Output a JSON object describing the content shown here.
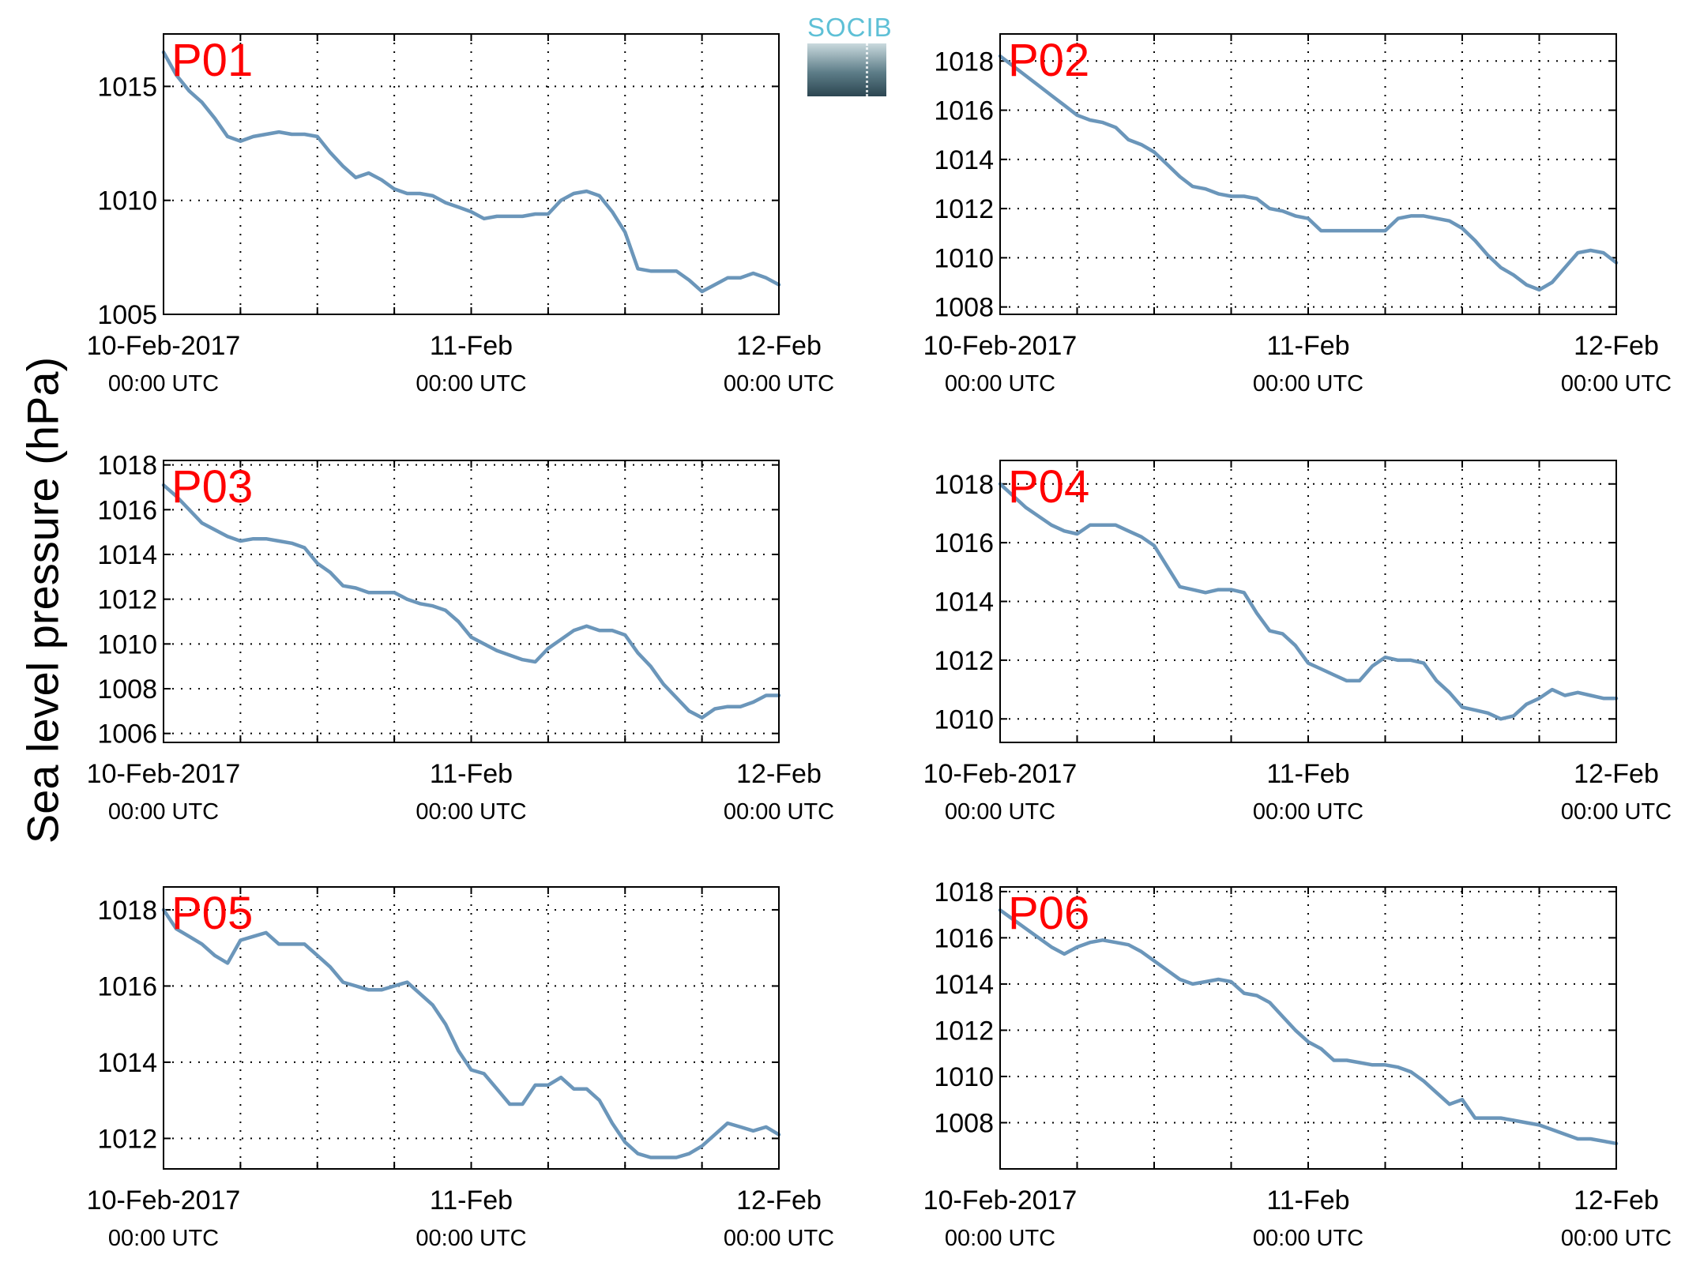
{
  "ylabel": "Sea level pressure (hPa)",
  "logo": {
    "text": "SOCIB"
  },
  "x_tick_labels": [
    {
      "line1": "10-Feb-2017",
      "line2": "00:00 UTC"
    },
    {
      "line1": "11-Feb",
      "line2": "00:00 UTC"
    },
    {
      "line1": "12-Feb",
      "line2": "00:00 UTC"
    }
  ],
  "colors": {
    "line": "#6b96ba",
    "panel_label": "#ff0000",
    "grid": "#000000"
  },
  "chart_data": [
    {
      "type": "line",
      "title": "P01",
      "xlim_hours": [
        0,
        48
      ],
      "ylim": [
        1005,
        1017.3
      ],
      "yticks": [
        1005,
        1010,
        1015
      ],
      "x_hours": [
        0,
        1,
        2,
        3,
        4,
        5,
        6,
        7,
        8,
        9,
        10,
        11,
        12,
        13,
        14,
        15,
        16,
        17,
        18,
        19,
        20,
        21,
        22,
        23,
        24,
        25,
        26,
        27,
        28,
        29,
        30,
        31,
        32,
        33,
        34,
        35,
        36,
        37,
        38,
        39,
        40,
        41,
        42,
        43,
        44,
        45,
        46,
        47,
        48
      ],
      "y": [
        1016.5,
        1015.5,
        1014.8,
        1014.3,
        1013.6,
        1012.8,
        1012.6,
        1012.8,
        1012.9,
        1013.0,
        1012.9,
        1012.9,
        1012.8,
        1012.1,
        1011.5,
        1011.0,
        1011.2,
        1010.9,
        1010.5,
        1010.3,
        1010.3,
        1010.2,
        1009.9,
        1009.7,
        1009.5,
        1009.2,
        1009.3,
        1009.3,
        1009.3,
        1009.4,
        1009.4,
        1010.0,
        1010.3,
        1010.4,
        1010.2,
        1009.5,
        1008.6,
        1007.0,
        1006.9,
        1006.9,
        1006.9,
        1006.5,
        1006.0,
        1006.3,
        1006.6,
        1006.6,
        1006.8,
        1006.6,
        1006.3
      ]
    },
    {
      "type": "line",
      "title": "P02",
      "xlim_hours": [
        0,
        48
      ],
      "ylim": [
        1007.7,
        1019.1
      ],
      "yticks": [
        1008,
        1010,
        1012,
        1014,
        1016,
        1018
      ],
      "x_hours": [
        0,
        1,
        2,
        3,
        4,
        5,
        6,
        7,
        8,
        9,
        10,
        11,
        12,
        13,
        14,
        15,
        16,
        17,
        18,
        19,
        20,
        21,
        22,
        23,
        24,
        25,
        26,
        27,
        28,
        29,
        30,
        31,
        32,
        33,
        34,
        35,
        36,
        37,
        38,
        39,
        40,
        41,
        42,
        43,
        44,
        45,
        46,
        47,
        48
      ],
      "y": [
        1018.2,
        1017.8,
        1017.4,
        1017.0,
        1016.6,
        1016.2,
        1015.8,
        1015.6,
        1015.5,
        1015.3,
        1014.8,
        1014.6,
        1014.3,
        1013.8,
        1013.3,
        1012.9,
        1012.8,
        1012.6,
        1012.5,
        1012.5,
        1012.4,
        1012.0,
        1011.9,
        1011.7,
        1011.6,
        1011.1,
        1011.1,
        1011.1,
        1011.1,
        1011.1,
        1011.1,
        1011.6,
        1011.7,
        1011.7,
        1011.6,
        1011.5,
        1011.2,
        1010.7,
        1010.1,
        1009.6,
        1009.3,
        1008.9,
        1008.7,
        1009.0,
        1009.6,
        1010.2,
        1010.3,
        1010.2,
        1009.8
      ]
    },
    {
      "type": "line",
      "title": "P03",
      "xlim_hours": [
        0,
        48
      ],
      "ylim": [
        1005.6,
        1018.2
      ],
      "yticks": [
        1006,
        1008,
        1010,
        1012,
        1014,
        1016,
        1018
      ],
      "x_hours": [
        0,
        1,
        2,
        3,
        4,
        5,
        6,
        7,
        8,
        9,
        10,
        11,
        12,
        13,
        14,
        15,
        16,
        17,
        18,
        19,
        20,
        21,
        22,
        23,
        24,
        25,
        26,
        27,
        28,
        29,
        30,
        31,
        32,
        33,
        34,
        35,
        36,
        37,
        38,
        39,
        40,
        41,
        42,
        43,
        44,
        45,
        46,
        47,
        48
      ],
      "y": [
        1017.1,
        1016.6,
        1016.0,
        1015.4,
        1015.1,
        1014.8,
        1014.6,
        1014.7,
        1014.7,
        1014.6,
        1014.5,
        1014.3,
        1013.6,
        1013.2,
        1012.6,
        1012.5,
        1012.3,
        1012.3,
        1012.3,
        1012.0,
        1011.8,
        1011.7,
        1011.5,
        1011.0,
        1010.3,
        1010.0,
        1009.7,
        1009.5,
        1009.3,
        1009.2,
        1009.8,
        1010.2,
        1010.6,
        1010.8,
        1010.6,
        1010.6,
        1010.4,
        1009.6,
        1009.0,
        1008.2,
        1007.6,
        1007.0,
        1006.7,
        1007.1,
        1007.2,
        1007.2,
        1007.4,
        1007.7,
        1007.7
      ]
    },
    {
      "type": "line",
      "title": "P04",
      "xlim_hours": [
        0,
        48
      ],
      "ylim": [
        1009.2,
        1018.8
      ],
      "yticks": [
        1010,
        1012,
        1014,
        1016,
        1018
      ],
      "x_hours": [
        0,
        1,
        2,
        3,
        4,
        5,
        6,
        7,
        8,
        9,
        10,
        11,
        12,
        13,
        14,
        15,
        16,
        17,
        18,
        19,
        20,
        21,
        22,
        23,
        24,
        25,
        26,
        27,
        28,
        29,
        30,
        31,
        32,
        33,
        34,
        35,
        36,
        37,
        38,
        39,
        40,
        41,
        42,
        43,
        44,
        45,
        46,
        47,
        48
      ],
      "y": [
        1018.0,
        1017.6,
        1017.2,
        1016.9,
        1016.6,
        1016.4,
        1016.3,
        1016.6,
        1016.6,
        1016.6,
        1016.4,
        1016.2,
        1015.9,
        1015.2,
        1014.5,
        1014.4,
        1014.3,
        1014.4,
        1014.4,
        1014.3,
        1013.6,
        1013.0,
        1012.9,
        1012.5,
        1011.9,
        1011.7,
        1011.5,
        1011.3,
        1011.3,
        1011.8,
        1012.1,
        1012.0,
        1012.0,
        1011.9,
        1011.3,
        1010.9,
        1010.4,
        1010.3,
        1010.2,
        1010.0,
        1010.1,
        1010.5,
        1010.7,
        1011.0,
        1010.8,
        1010.9,
        1010.8,
        1010.7,
        1010.7
      ]
    },
    {
      "type": "line",
      "title": "P05",
      "xlim_hours": [
        0,
        48
      ],
      "ylim": [
        1011.2,
        1018.6
      ],
      "yticks": [
        1012,
        1014,
        1016,
        1018
      ],
      "x_hours": [
        0,
        1,
        2,
        3,
        4,
        5,
        6,
        7,
        8,
        9,
        10,
        11,
        12,
        13,
        14,
        15,
        16,
        17,
        18,
        19,
        20,
        21,
        22,
        23,
        24,
        25,
        26,
        27,
        28,
        29,
        30,
        31,
        32,
        33,
        34,
        35,
        36,
        37,
        38,
        39,
        40,
        41,
        42,
        43,
        44,
        45,
        46,
        47,
        48
      ],
      "y": [
        1018.0,
        1017.5,
        1017.3,
        1017.1,
        1016.8,
        1016.6,
        1017.2,
        1017.3,
        1017.4,
        1017.1,
        1017.1,
        1017.1,
        1016.8,
        1016.5,
        1016.1,
        1016.0,
        1015.9,
        1015.9,
        1016.0,
        1016.1,
        1015.8,
        1015.5,
        1015.0,
        1014.3,
        1013.8,
        1013.7,
        1013.3,
        1012.9,
        1012.9,
        1013.4,
        1013.4,
        1013.6,
        1013.3,
        1013.3,
        1013.0,
        1012.4,
        1011.9,
        1011.6,
        1011.5,
        1011.5,
        1011.5,
        1011.6,
        1011.8,
        1012.1,
        1012.4,
        1012.3,
        1012.2,
        1012.3,
        1012.1
      ]
    },
    {
      "type": "line",
      "title": "P06",
      "xlim_hours": [
        0,
        48
      ],
      "ylim": [
        1006.0,
        1018.2
      ],
      "yticks": [
        1008,
        1010,
        1012,
        1014,
        1016,
        1018
      ],
      "x_hours": [
        0,
        1,
        2,
        3,
        4,
        5,
        6,
        7,
        8,
        9,
        10,
        11,
        12,
        13,
        14,
        15,
        16,
        17,
        18,
        19,
        20,
        21,
        22,
        23,
        24,
        25,
        26,
        27,
        28,
        29,
        30,
        31,
        32,
        33,
        34,
        35,
        36,
        37,
        38,
        39,
        40,
        41,
        42,
        43,
        44,
        45,
        46,
        47,
        48
      ],
      "y": [
        1017.2,
        1016.8,
        1016.4,
        1016.0,
        1015.6,
        1015.3,
        1015.6,
        1015.8,
        1015.9,
        1015.8,
        1015.7,
        1015.4,
        1015.0,
        1014.6,
        1014.2,
        1014.0,
        1014.1,
        1014.2,
        1014.1,
        1013.6,
        1013.5,
        1013.2,
        1012.6,
        1012.0,
        1011.5,
        1011.2,
        1010.7,
        1010.7,
        1010.6,
        1010.5,
        1010.5,
        1010.4,
        1010.2,
        1009.8,
        1009.3,
        1008.8,
        1009.0,
        1008.2,
        1008.2,
        1008.2,
        1008.1,
        1008.0,
        1007.9,
        1007.7,
        1007.5,
        1007.3,
        1007.3,
        1007.2,
        1007.1
      ]
    }
  ]
}
